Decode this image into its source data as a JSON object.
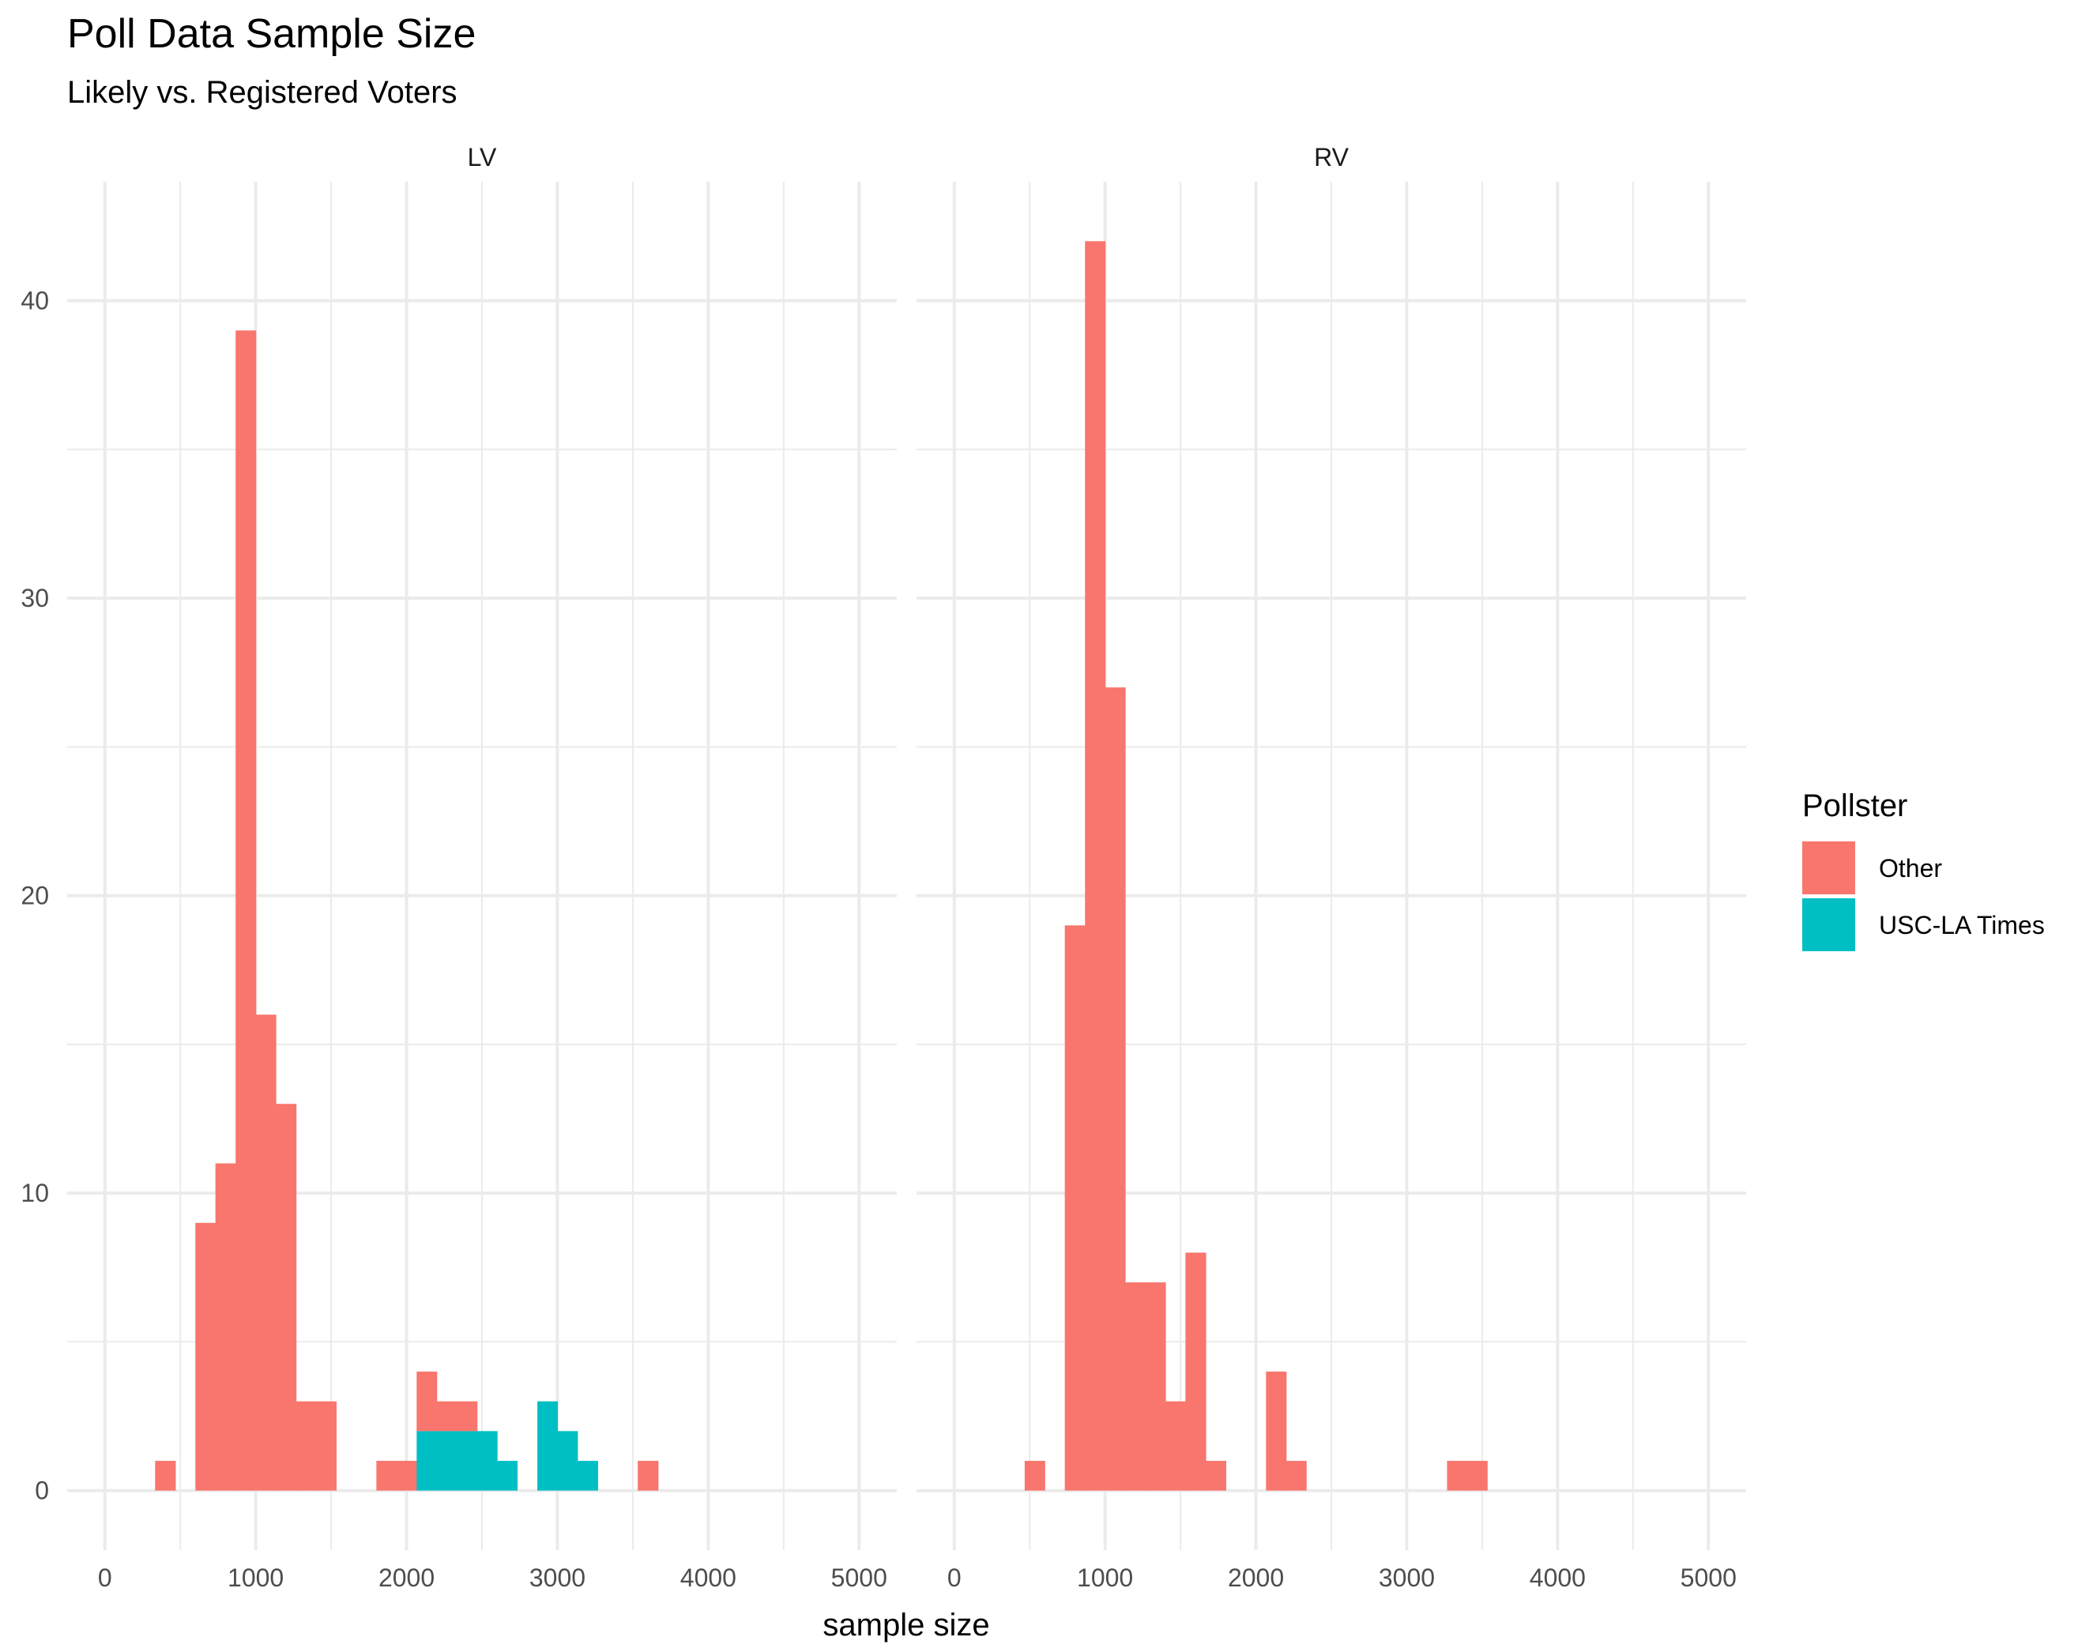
{
  "chart_data": {
    "type": "bar",
    "title": "Poll Data Sample Size",
    "subtitle": "Likely vs. Registered Voters",
    "xlabel": "sample size",
    "ylabel": "",
    "xlim": [
      -250,
      5250
    ],
    "ylim": [
      -2,
      44
    ],
    "x_ticks": [
      0,
      1000,
      2000,
      3000,
      4000,
      5000
    ],
    "x_tick_labels": [
      "0",
      "1000",
      "2000",
      "3000",
      "4000",
      "5000"
    ],
    "y_ticks": [
      0,
      10,
      20,
      30,
      40
    ],
    "y_tick_labels": [
      "0",
      "10",
      "20",
      "30",
      "40"
    ],
    "bin_width": 133.33,
    "grid": true,
    "legend": {
      "title": "Pollster",
      "position": "right",
      "entries": [
        {
          "name": "Other",
          "color": "#F8766D"
        },
        {
          "name": "USC-LA Times",
          "color": "#00BFC4"
        }
      ]
    },
    "facets": [
      {
        "label": "LV",
        "bins": [
          {
            "x0": 333,
            "x1": 467,
            "other": 1,
            "usc": 0
          },
          {
            "x0": 600,
            "x1": 733,
            "other": 9,
            "usc": 0
          },
          {
            "x0": 733,
            "x1": 867,
            "other": 11,
            "usc": 0
          },
          {
            "x0": 867,
            "x1": 1000,
            "other": 39,
            "usc": 0
          },
          {
            "x0": 1000,
            "x1": 1133,
            "other": 16,
            "usc": 0
          },
          {
            "x0": 1133,
            "x1": 1267,
            "other": 13,
            "usc": 0
          },
          {
            "x0": 1267,
            "x1": 1400,
            "other": 3,
            "usc": 0
          },
          {
            "x0": 1400,
            "x1": 1533,
            "other": 3,
            "usc": 0
          },
          {
            "x0": 1800,
            "x1": 1933,
            "other": 1,
            "usc": 0
          },
          {
            "x0": 1933,
            "x1": 2067,
            "other": 1,
            "usc": 0
          },
          {
            "x0": 2067,
            "x1": 2200,
            "other": 2,
            "usc": 2
          },
          {
            "x0": 2200,
            "x1": 2333,
            "other": 1,
            "usc": 2
          },
          {
            "x0": 2333,
            "x1": 2467,
            "other": 1,
            "usc": 2
          },
          {
            "x0": 2467,
            "x1": 2600,
            "other": 0,
            "usc": 2
          },
          {
            "x0": 2600,
            "x1": 2733,
            "other": 0,
            "usc": 1
          },
          {
            "x0": 2867,
            "x1": 3000,
            "other": 0,
            "usc": 3
          },
          {
            "x0": 3000,
            "x1": 3133,
            "other": 0,
            "usc": 2
          },
          {
            "x0": 3133,
            "x1": 3267,
            "other": 0,
            "usc": 1
          },
          {
            "x0": 3533,
            "x1": 3667,
            "other": 1,
            "usc": 0
          }
        ]
      },
      {
        "label": "RV",
        "bins": [
          {
            "x0": 467,
            "x1": 600,
            "other": 1,
            "usc": 0
          },
          {
            "x0": 733,
            "x1": 867,
            "other": 19,
            "usc": 0
          },
          {
            "x0": 867,
            "x1": 1000,
            "other": 42,
            "usc": 0
          },
          {
            "x0": 1000,
            "x1": 1133,
            "other": 27,
            "usc": 0
          },
          {
            "x0": 1133,
            "x1": 1267,
            "other": 7,
            "usc": 0
          },
          {
            "x0": 1267,
            "x1": 1400,
            "other": 7,
            "usc": 0
          },
          {
            "x0": 1400,
            "x1": 1533,
            "other": 3,
            "usc": 0
          },
          {
            "x0": 1533,
            "x1": 1667,
            "other": 8,
            "usc": 0
          },
          {
            "x0": 1667,
            "x1": 1800,
            "other": 1,
            "usc": 0
          },
          {
            "x0": 2067,
            "x1": 2200,
            "other": 4,
            "usc": 0
          },
          {
            "x0": 2200,
            "x1": 2333,
            "other": 1,
            "usc": 0
          },
          {
            "x0": 3267,
            "x1": 3400,
            "other": 1,
            "usc": 0
          },
          {
            "x0": 3400,
            "x1": 3533,
            "other": 1,
            "usc": 0
          }
        ]
      }
    ]
  }
}
